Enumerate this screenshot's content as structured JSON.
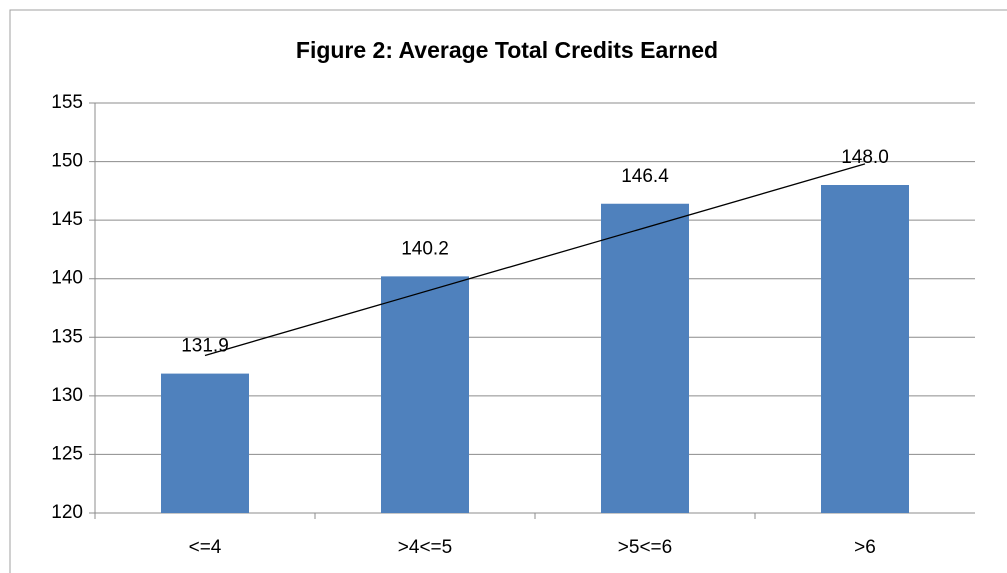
{
  "chart_data": {
    "type": "bar",
    "title": "Figure 2: Average Total Credits Earned",
    "categories": [
      "<=4",
      ">4<=5",
      ">5<=6",
      ">6"
    ],
    "values": [
      131.9,
      140.2,
      146.4,
      148.0
    ],
    "value_labels": [
      "131.9",
      "140.2",
      "146.4",
      "148.0"
    ],
    "color": "#4f81bd",
    "ylim": [
      120,
      155
    ],
    "yticks": [
      120,
      125,
      130,
      135,
      140,
      145,
      150,
      155
    ],
    "grid": true,
    "trendline": "linear"
  }
}
